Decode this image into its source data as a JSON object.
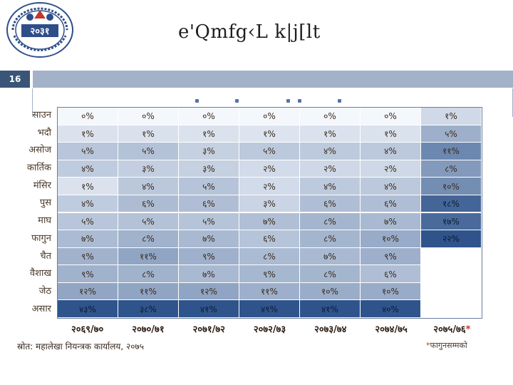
{
  "header": {
    "title": "e'Qmfg‹L k|j[lt",
    "slide_number": "16"
  },
  "table": {
    "rows": [
      "साउन",
      "भदौ",
      "असोज",
      "कार्तिक",
      "मंसिर",
      "पुस",
      "माघ",
      "फागुन",
      "चैत",
      "वैशाख",
      "जेठ",
      "असार"
    ],
    "columns": [
      "२०६९/७०",
      "२०७०/७१",
      "२०७१/७२",
      "२०७२/७३",
      "२०७३/७४",
      "२०७४/७५",
      "२०७५/७६"
    ],
    "column_star": "*",
    "cells": [
      [
        "०%",
        "०%",
        "०%",
        "०%",
        "०%",
        "०%",
        "१%"
      ],
      [
        "१%",
        "१%",
        "१%",
        "१%",
        "१%",
        "१%",
        "५%"
      ],
      [
        "५%",
        "५%",
        "३%",
        "५%",
        "४%",
        "४%",
        "११%"
      ],
      [
        "४%",
        "३%",
        "३%",
        "२%",
        "२%",
        "२%",
        "८%"
      ],
      [
        "१%",
        "४%",
        "५%",
        "२%",
        "४%",
        "४%",
        "१०%"
      ],
      [
        "४%",
        "६%",
        "६%",
        "३%",
        "६%",
        "६%",
        "१८%"
      ],
      [
        "५%",
        "५%",
        "५%",
        "७%",
        "८%",
        "७%",
        "१७%"
      ],
      [
        "७%",
        "८%",
        "७%",
        "६%",
        "८%",
        "१०%",
        "२२%"
      ],
      [
        "९%",
        "११%",
        "९%",
        "८%",
        "७%",
        "९%",
        ""
      ],
      [
        "९%",
        "८%",
        "७%",
        "९%",
        "८%",
        "६%",
        ""
      ],
      [
        "१२%",
        "११%",
        "१२%",
        "११%",
        "१०%",
        "१०%",
        ""
      ],
      [
        "४३%",
        "३८%",
        "४१%",
        "४९%",
        "४१%",
        "४०%",
        ""
      ]
    ],
    "values": [
      [
        0,
        0,
        0,
        0,
        0,
        0,
        1
      ],
      [
        1,
        1,
        1,
        1,
        1,
        1,
        5
      ],
      [
        5,
        5,
        3,
        5,
        4,
        4,
        11
      ],
      [
        4,
        3,
        3,
        2,
        2,
        2,
        8
      ],
      [
        1,
        4,
        5,
        2,
        4,
        4,
        10
      ],
      [
        4,
        6,
        6,
        3,
        6,
        6,
        18
      ],
      [
        5,
        5,
        5,
        7,
        8,
        7,
        17
      ],
      [
        7,
        8,
        7,
        6,
        8,
        10,
        22
      ],
      [
        9,
        11,
        9,
        8,
        7,
        9,
        null
      ],
      [
        9,
        8,
        7,
        9,
        8,
        6,
        null
      ],
      [
        12,
        11,
        12,
        11,
        10,
        10,
        null
      ],
      [
        43,
        38,
        41,
        49,
        41,
        40,
        null
      ]
    ],
    "colors": {
      "low": "#f4f7fc",
      "high": "#2f548c",
      "grid": "#ffffff"
    }
  },
  "source_text": "स्रोत: महालेखा नियन्त्रक कार्यालय, २०७५",
  "footnote": {
    "star": "*",
    "text": "फागुनसम्मको"
  }
}
